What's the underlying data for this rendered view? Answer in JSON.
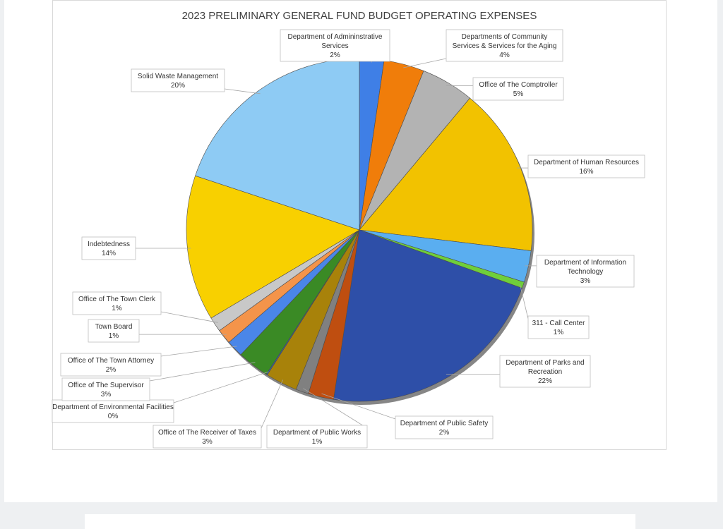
{
  "chart_data": {
    "type": "pie",
    "title": "2023 PRELIMINARY GENERAL FUND BUDGET OPERATING EXPENSES",
    "slices": [
      {
        "lines": [
          "Department of Admininstrative",
          "Services"
        ],
        "pct_label": "2%",
        "value": 2.3,
        "color": "#3f7fe6"
      },
      {
        "lines": [
          "Departments of Community",
          "Services & Services for the Aging"
        ],
        "pct_label": "4%",
        "value": 3.8,
        "color": "#f07d0a"
      },
      {
        "lines": [
          "Office of The Comptroller"
        ],
        "pct_label": "5%",
        "value": 5.0,
        "color": "#b3b3b3"
      },
      {
        "lines": [
          "Department of Human Resources"
        ],
        "pct_label": "16%",
        "value": 16.0,
        "color": "#f2c200"
      },
      {
        "lines": [
          "Department of Information",
          "Technology"
        ],
        "pct_label": "3%",
        "value": 3.0,
        "color": "#5aaef0"
      },
      {
        "lines": [
          "311 - Call Center"
        ],
        "pct_label": "1%",
        "value": 0.6,
        "color": "#6fcf3a"
      },
      {
        "lines": [
          "Department of Parks and",
          "Recreation"
        ],
        "pct_label": "22%",
        "value": 22.0,
        "color": "#2e4fa8"
      },
      {
        "lines": [
          "Department of Public Safety"
        ],
        "pct_label": "2%",
        "value": 2.4,
        "color": "#bf4e10"
      },
      {
        "lines": [
          "Department of Public Works"
        ],
        "pct_label": "1%",
        "value": 1.2,
        "color": "#808080"
      },
      {
        "lines": [
          "Office of The Receiver of Taxes"
        ],
        "pct_label": "3%",
        "value": 3.0,
        "color": "#a8820a"
      },
      {
        "lines": [
          "Department of Environmental Facilities"
        ],
        "pct_label": "0%",
        "value": 0.1,
        "color": "#2b5fbf"
      },
      {
        "lines": [
          "Office of The Supervisor"
        ],
        "pct_label": "3%",
        "value": 3.0,
        "color": "#3a8a25"
      },
      {
        "lines": [
          "Office of The Town Attorney"
        ],
        "pct_label": "2%",
        "value": 1.6,
        "color": "#4a86e8"
      },
      {
        "lines": [
          "Town Board"
        ],
        "pct_label": "1%",
        "value": 1.4,
        "color": "#f4944a"
      },
      {
        "lines": [
          "Office of The Town Clerk"
        ],
        "pct_label": "1%",
        "value": 1.4,
        "color": "#c8c8c8"
      },
      {
        "lines": [
          "Indebtedness"
        ],
        "pct_label": "14%",
        "value": 13.8,
        "color": "#f8d000"
      },
      {
        "lines": [
          "Solid Waste Management"
        ],
        "pct_label": "20%",
        "value": 20.0,
        "color": "#8ecbf4"
      }
    ]
  }
}
